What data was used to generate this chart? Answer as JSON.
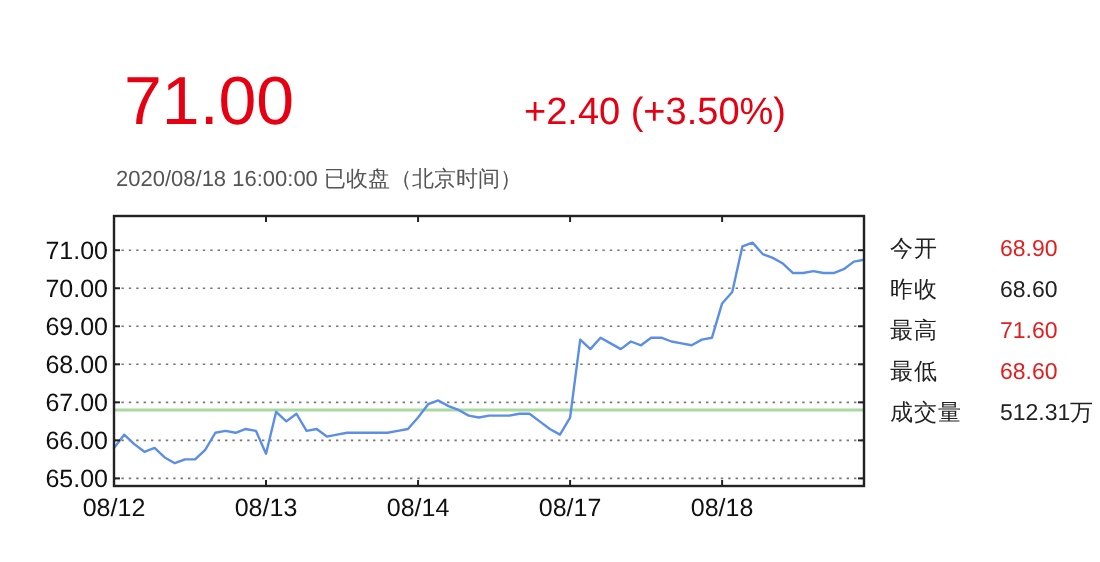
{
  "chart_data": {
    "type": "line",
    "title": "71.00",
    "subtitle": "+2.40 (+3.50%)",
    "annotations": [
      "2020/08/18 16:00:00 已收盘（北京时间）",
      "今开",
      "68.90",
      "昨收",
      "68.60",
      "最高",
      "71.60",
      "最低",
      "68.60",
      "成交量",
      "512.31万"
    ],
    "categories": [
      "08/12",
      null,
      null,
      null,
      null,
      null,
      null,
      null,
      null,
      null,
      null,
      null,
      null,
      null,
      null,
      "08/13",
      null,
      null,
      null,
      null,
      null,
      null,
      null,
      null,
      null,
      null,
      null,
      null,
      null,
      null,
      "08/14",
      null,
      null,
      null,
      null,
      null,
      null,
      null,
      null,
      null,
      null,
      null,
      null,
      null,
      null,
      "08/17",
      null,
      null,
      null,
      null,
      null,
      null,
      null,
      null,
      null,
      null,
      null,
      null,
      null,
      null,
      "08/18",
      null,
      null,
      null,
      null,
      null,
      null,
      null,
      null,
      null,
      null,
      null,
      null,
      null,
      null
    ],
    "series": [
      {
        "color": "#5b8ee6",
        "values": [
          65.8,
          66.15,
          65.9,
          65.7,
          65.8,
          65.55,
          65.4,
          65.5,
          65.5,
          65.75,
          66.2,
          66.25,
          66.2,
          66.3,
          66.25,
          65.65,
          66.75,
          66.5,
          66.7,
          66.25,
          66.3,
          66.1,
          66.15,
          66.2,
          66.2,
          66.2,
          66.2,
          66.2,
          66.25,
          66.3,
          66.6,
          66.95,
          67.05,
          66.9,
          66.8,
          66.65,
          66.6,
          66.65,
          66.65,
          66.65,
          66.7,
          66.7,
          66.5,
          66.3,
          66.15,
          66.6,
          68.65,
          68.4,
          68.7,
          68.55,
          68.4,
          68.6,
          68.5,
          68.7,
          68.7,
          68.6,
          68.55,
          68.5,
          68.65,
          68.7,
          69.6,
          69.9,
          71.1,
          71.2,
          70.9,
          70.8,
          70.65,
          70.4,
          70.4,
          70.45,
          70.4,
          70.4,
          70.5,
          70.7,
          70.75
        ]
      }
    ],
    "ylim": [
      64.8,
      71.9
    ],
    "yticks": [
      {
        "value": 65,
        "label": "65.00"
      },
      {
        "value": 66,
        "label": "66.00"
      },
      {
        "value": 67,
        "label": "67.00"
      },
      {
        "value": 68,
        "label": "68.00"
      },
      {
        "value": 69,
        "label": "69.00"
      },
      {
        "value": 70,
        "label": "70.00"
      },
      {
        "value": 71,
        "label": "71.00"
      }
    ],
    "ref_lines": [
      {
        "axis": "y",
        "value": 66.8,
        "color": "#a9d8a0"
      }
    ],
    "grid": "y"
  }
}
